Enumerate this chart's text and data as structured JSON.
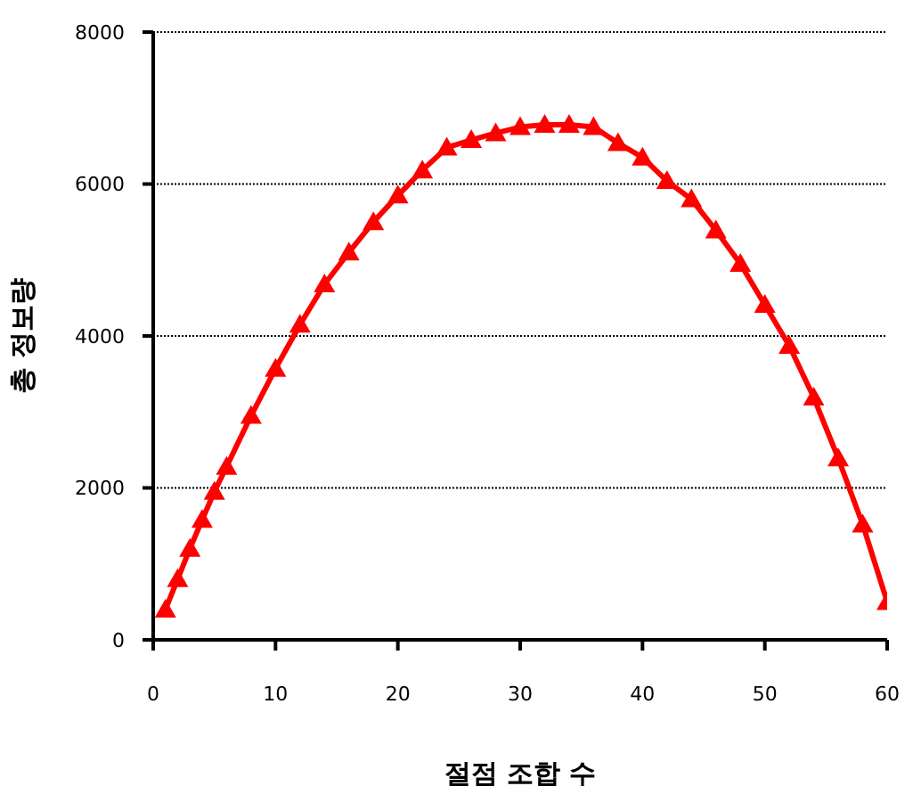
{
  "chart_data": {
    "type": "line",
    "xlabel": "절점 조합 수",
    "ylabel": "총 정보량",
    "x": [
      1,
      2,
      3,
      4,
      5,
      6,
      8,
      10,
      12,
      14,
      16,
      18,
      20,
      22,
      24,
      26,
      28,
      30,
      32,
      34,
      36,
      38,
      40,
      42,
      44,
      46,
      48,
      50,
      52,
      54,
      56,
      58,
      60
    ],
    "series": [
      {
        "color": "#ff0000",
        "values": [
          400,
          800,
          1200,
          1580,
          1950,
          2280,
          2950,
          3570,
          4150,
          4680,
          5100,
          5500,
          5850,
          6180,
          6480,
          6580,
          6670,
          6750,
          6780,
          6780,
          6750,
          6540,
          6350,
          6040,
          5800,
          5390,
          4950,
          4410,
          3870,
          3190,
          2390,
          1520,
          500
        ]
      }
    ],
    "xlim": [
      0,
      60
    ],
    "xticks": [
      0,
      10,
      20,
      30,
      40,
      50,
      60
    ],
    "ylim": [
      0,
      8000
    ],
    "yticks": [
      0,
      2000,
      4000,
      6000,
      8000
    ],
    "grid": "y",
    "legend": false,
    "marker": "triangle",
    "line_style": "solid"
  }
}
